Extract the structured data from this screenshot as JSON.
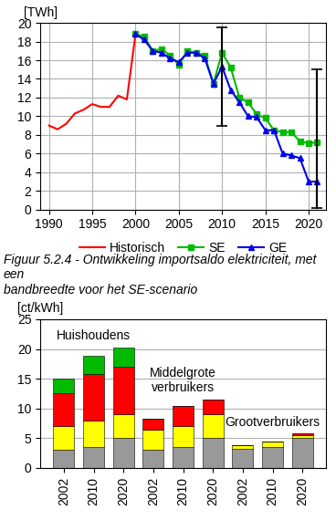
{
  "chart_data": [
    {
      "type": "line",
      "y_label": "[TWh]",
      "caption": "Figuur 5.2.4 - Ontwikkeling importsaldo elektriciteit, met een\nbandbreedte voor het SE-scenario",
      "xlim": [
        1989,
        2022
      ],
      "xticks": [
        1990,
        1995,
        2000,
        2005,
        2010,
        2015,
        2020
      ],
      "ylim": [
        0,
        20
      ],
      "yticks": [
        0,
        2,
        4,
        6,
        8,
        10,
        12,
        14,
        16,
        18,
        20
      ],
      "grid": true,
      "legend": "upper center",
      "series": [
        {
          "name": "Historisch",
          "color": "#ff0000",
          "x": [
            1990,
            1991,
            1992,
            1993,
            1994,
            1995,
            1996,
            1997,
            1998,
            1999,
            2000
          ],
          "values": [
            9.0,
            8.6,
            9.2,
            10.3,
            10.7,
            11.3,
            11.0,
            11.0,
            12.2,
            11.8,
            18.8
          ]
        },
        {
          "name": "SE",
          "color": "#00bb00",
          "marker": "square",
          "x": [
            2000,
            2001,
            2002,
            2003,
            2004,
            2005,
            2006,
            2007,
            2008,
            2009,
            2010,
            2011,
            2012,
            2013,
            2014,
            2015,
            2016,
            2017,
            2018,
            2019,
            2020,
            2021
          ],
          "values": [
            18.8,
            18.5,
            17.0,
            17.2,
            16.5,
            15.5,
            17.0,
            16.8,
            16.5,
            13.5,
            16.8,
            15.2,
            12.0,
            11.5,
            10.2,
            9.8,
            8.5,
            8.3,
            8.3,
            7.3,
            7.1,
            7.2
          ]
        },
        {
          "name": "GE",
          "color": "#0000ee",
          "marker": "triangle",
          "x": [
            2000,
            2001,
            2002,
            2003,
            2004,
            2005,
            2006,
            2007,
            2008,
            2009,
            2010,
            2011,
            2012,
            2013,
            2014,
            2015,
            2016,
            2017,
            2018,
            2019,
            2020,
            2021
          ],
          "values": [
            18.8,
            18.2,
            17.0,
            16.8,
            16.2,
            15.8,
            16.8,
            16.8,
            16.2,
            13.5,
            15.3,
            12.8,
            11.5,
            10.0,
            9.9,
            8.5,
            8.5,
            6.0,
            5.8,
            5.5,
            3.0,
            3.0
          ]
        }
      ],
      "error_bars": [
        {
          "x": 2010,
          "low": 9.0,
          "high": 19.5
        },
        {
          "x": 2021,
          "low": 0.2,
          "high": 15.0
        }
      ]
    },
    {
      "type": "bar",
      "stacked": true,
      "y_label": "[ct/kWh]",
      "categories": [
        "2002",
        "2010",
        "2020",
        "2002",
        "2010",
        "2020",
        "2002",
        "2010",
        "2020"
      ],
      "group_labels": [
        "Huishoudens",
        "Middelgrote\nverbruikers",
        "Grootverbruikers"
      ],
      "ylim": [
        0,
        25
      ],
      "yticks": [
        0,
        5,
        10,
        15,
        20,
        25
      ],
      "grid": "y",
      "series": [
        {
          "color": "#999999",
          "values": [
            3.0,
            3.5,
            5.0,
            3.0,
            3.5,
            5.0,
            3.2,
            3.5,
            5.0
          ]
        },
        {
          "color": "#ffff00",
          "values": [
            4.0,
            4.5,
            4.0,
            3.5,
            3.5,
            4.0,
            0.7,
            1.0,
            0.5
          ]
        },
        {
          "color": "#ff0000",
          "values": [
            5.5,
            7.8,
            8.0,
            1.8,
            3.5,
            2.5,
            0,
            0,
            0.3
          ]
        },
        {
          "color": "#00bb00",
          "values": [
            2.5,
            3.0,
            3.3,
            0,
            0,
            0,
            0,
            0,
            0
          ]
        }
      ]
    }
  ]
}
